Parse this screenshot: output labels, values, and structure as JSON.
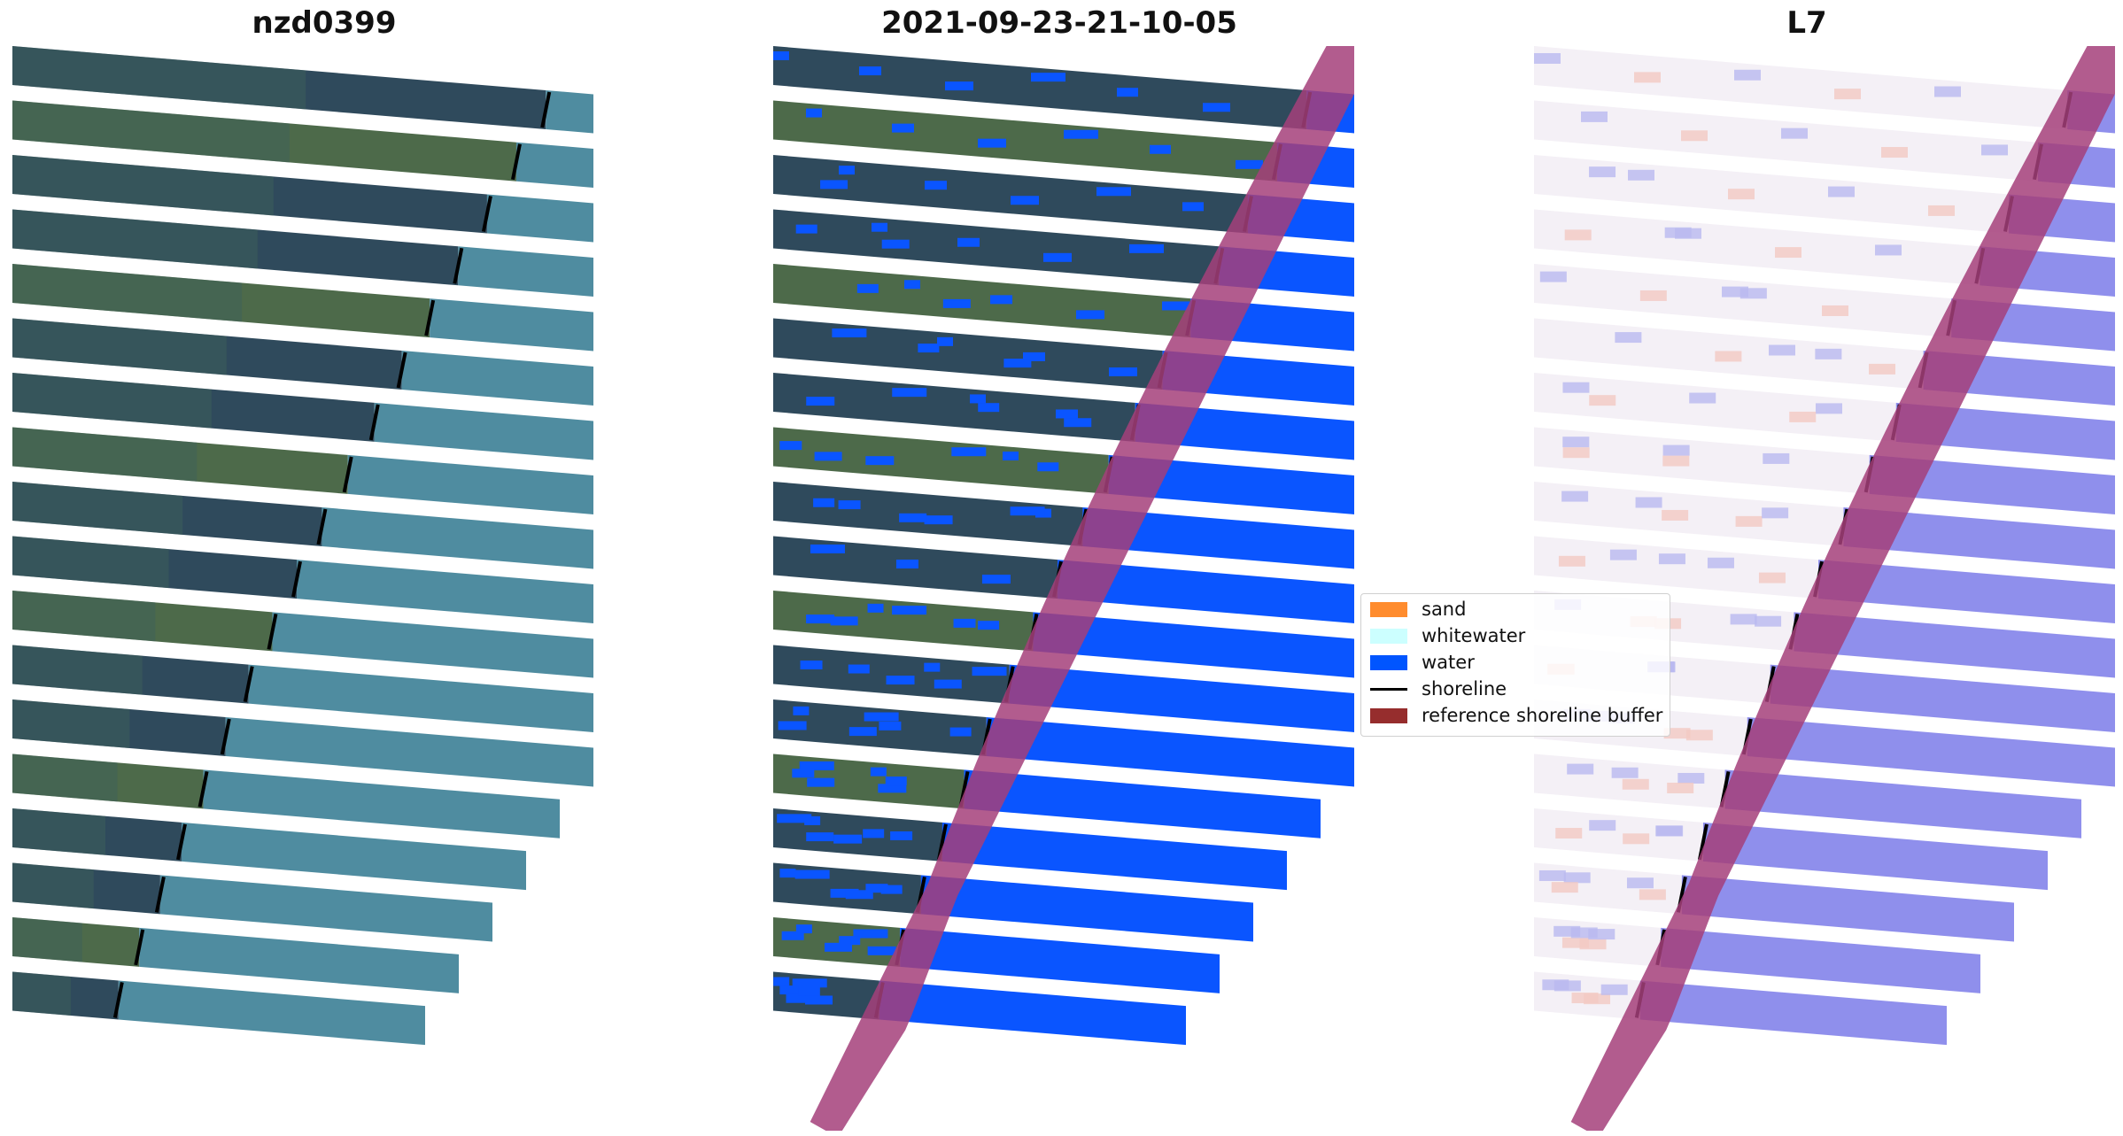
{
  "panels": [
    {
      "title": "nzd0399",
      "type": "rgb"
    },
    {
      "title": "2021-09-23-21-10-05",
      "type": "classified"
    },
    {
      "title": "L7",
      "type": "index"
    }
  ],
  "legend": {
    "items": [
      {
        "label": "sand",
        "kind": "patch",
        "color": "#ff8c2e"
      },
      {
        "label": "whitewater",
        "kind": "patch",
        "color": "#ccffff"
      },
      {
        "label": "water",
        "kind": "patch",
        "color": "#0055ff"
      },
      {
        "label": "shoreline",
        "kind": "line",
        "color": "#000000"
      },
      {
        "label": "reference shoreline buffer",
        "kind": "patch",
        "color": "#962d2d"
      }
    ]
  },
  "colors": {
    "land_dark": "#2f4a5c",
    "land_green": "#4d6a4a",
    "sea_rgb": "#4f8ca0",
    "water_class": "#0a55ff",
    "buffer": "#a4407a",
    "index_neg": "#6a6ae6",
    "index_pos": "#f3c9c3"
  }
}
